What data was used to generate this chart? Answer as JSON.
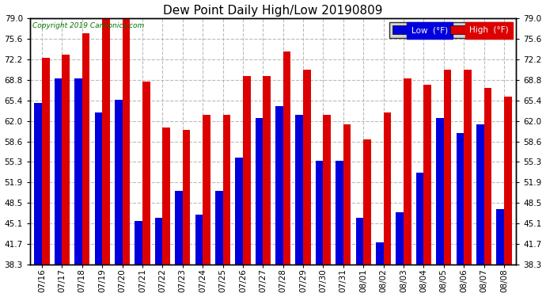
{
  "title": "Dew Point Daily High/Low 20190809",
  "copyright": "Copyright 2019 Cartronics.com",
  "legend_low": "Low  (°F)",
  "legend_high": "High  (°F)",
  "low_color": "#0000dd",
  "high_color": "#dd0000",
  "dates": [
    "07/16",
    "07/17",
    "07/18",
    "07/19",
    "07/20",
    "07/21",
    "07/22",
    "07/23",
    "07/24",
    "07/25",
    "07/26",
    "07/27",
    "07/28",
    "07/29",
    "07/30",
    "07/31",
    "08/01",
    "08/02",
    "08/03",
    "08/04",
    "08/05",
    "08/06",
    "08/07",
    "08/08"
  ],
  "low_values": [
    65.0,
    69.0,
    69.0,
    63.5,
    65.5,
    45.5,
    46.0,
    50.5,
    46.5,
    50.5,
    56.0,
    62.5,
    64.5,
    63.0,
    55.5,
    55.5,
    46.0,
    42.0,
    47.0,
    53.5,
    62.5,
    60.0,
    61.5,
    47.5
  ],
  "high_values": [
    72.5,
    73.0,
    76.5,
    79.5,
    79.5,
    68.5,
    61.0,
    60.5,
    63.0,
    63.0,
    69.5,
    69.5,
    73.5,
    70.5,
    63.0,
    61.5,
    59.0,
    63.5,
    69.0,
    68.0,
    70.5,
    70.5,
    67.5,
    66.0
  ],
  "ymin": 38.3,
  "ymax": 79.0,
  "yticks": [
    38.3,
    41.7,
    45.1,
    48.5,
    51.9,
    55.3,
    58.6,
    62.0,
    65.4,
    68.8,
    72.2,
    75.6,
    79.0
  ],
  "bg_color": "#ffffff",
  "grid_color": "#aaaaaa",
  "bar_width": 0.38,
  "fig_width": 6.9,
  "fig_height": 3.75,
  "dpi": 100
}
